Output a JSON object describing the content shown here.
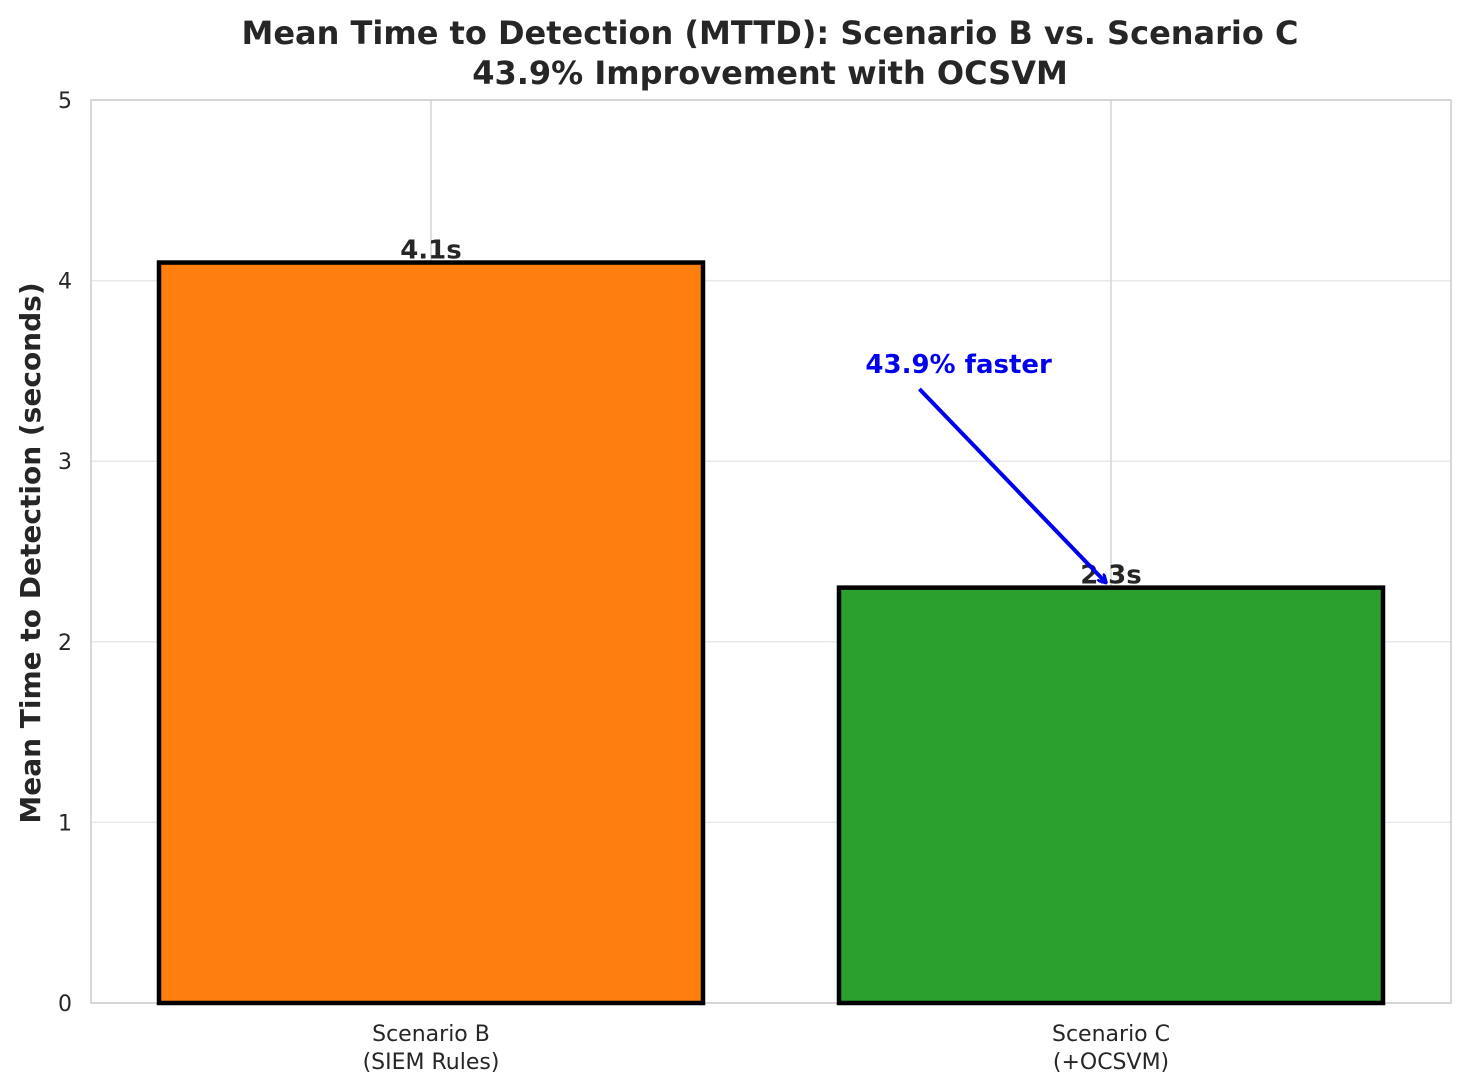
{
  "chart_data": {
    "type": "bar",
    "title": "Mean Time to Detection (MTTD): Scenario B vs. Scenario C",
    "subtitle": "43.9% Improvement with OCSVM",
    "ylabel": "Mean Time to Detection (seconds)",
    "xlabel": "",
    "ylim": [
      0,
      5
    ],
    "yticks": [
      0,
      1,
      2,
      3,
      4,
      5
    ],
    "grid": true,
    "categories": [
      {
        "line1": "Scenario B",
        "line2": "(SIEM Rules)"
      },
      {
        "line1": "Scenario C",
        "line2": "(+OCSVM)"
      }
    ],
    "values": [
      4.1,
      2.3
    ],
    "data_labels": [
      "4.1s",
      "2.3s"
    ],
    "colors": [
      "#ff7f0e",
      "#2ca02c"
    ],
    "annotation": {
      "text": "43.9% faster",
      "color": "#0000ee",
      "from": {
        "x": 0.68,
        "y": 3.4
      },
      "to": {
        "x": 1.0,
        "y": 2.3
      }
    }
  }
}
